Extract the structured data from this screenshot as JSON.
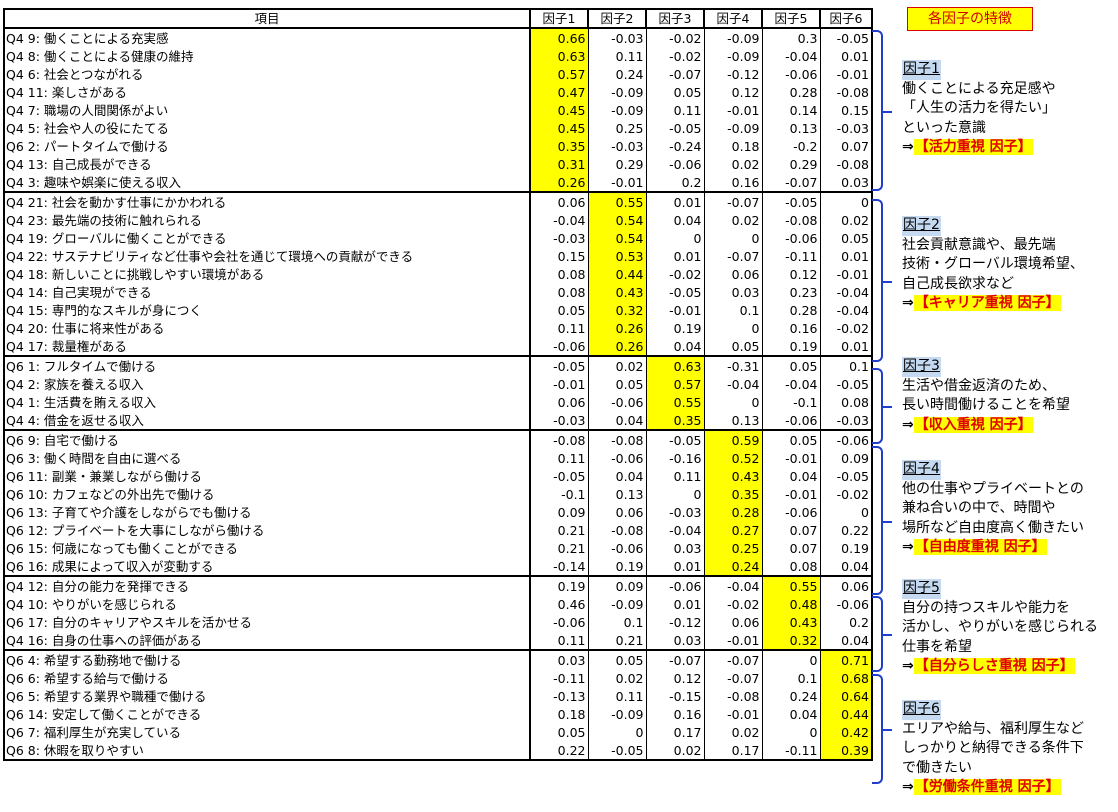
{
  "header": {
    "item": "項目",
    "factors": [
      "因子1",
      "因子2",
      "因子3",
      "因子4",
      "因子5",
      "因子6"
    ]
  },
  "groups": [
    {
      "rows": [
        {
          "item": "Q4 9: 働くことによる充実感",
          "values": [
            "0.66",
            "-0.03",
            "-0.02",
            "-0.09",
            "0.3",
            "-0.05"
          ],
          "hl": 0
        },
        {
          "item": "Q4 8: 働くことによる健康の維持",
          "values": [
            "0.63",
            "0.11",
            "-0.02",
            "-0.09",
            "-0.04",
            "0.01"
          ],
          "hl": 0
        },
        {
          "item": "Q4 6: 社会とつながれる",
          "values": [
            "0.57",
            "0.24",
            "-0.07",
            "-0.12",
            "-0.06",
            "-0.01"
          ],
          "hl": 0
        },
        {
          "item": "Q4 11: 楽しさがある",
          "values": [
            "0.47",
            "-0.09",
            "0.05",
            "0.12",
            "0.28",
            "-0.08"
          ],
          "hl": 0
        },
        {
          "item": "Q4 7: 職場の人間関係がよい",
          "values": [
            "0.45",
            "-0.09",
            "0.11",
            "-0.01",
            "0.14",
            "0.15"
          ],
          "hl": 0
        },
        {
          "item": "Q4 5: 社会や人の役にたてる",
          "values": [
            "0.45",
            "0.25",
            "-0.05",
            "-0.09",
            "0.13",
            "-0.03"
          ],
          "hl": 0
        },
        {
          "item": "Q6 2: パートタイムで働ける",
          "values": [
            "0.35",
            "-0.03",
            "-0.24",
            "0.18",
            "-0.2",
            "0.07"
          ],
          "hl": 0
        },
        {
          "item": "Q4 13: 自己成長ができる",
          "values": [
            "0.31",
            "0.29",
            "-0.06",
            "0.02",
            "0.29",
            "-0.08"
          ],
          "hl": 0
        },
        {
          "item": "Q4 3: 趣味や娯楽に使える収入",
          "values": [
            "0.26",
            "-0.01",
            "0.2",
            "0.16",
            "-0.07",
            "0.03"
          ],
          "hl": 0
        }
      ]
    },
    {
      "rows": [
        {
          "item": "Q4 21: 社会を動かす仕事にかかわれる",
          "values": [
            "0.06",
            "0.55",
            "0.01",
            "-0.07",
            "-0.05",
            "0"
          ],
          "hl": 1
        },
        {
          "item": "Q4 23: 最先端の技術に触れられる",
          "values": [
            "-0.04",
            "0.54",
            "0.04",
            "0.02",
            "-0.08",
            "0.02"
          ],
          "hl": 1
        },
        {
          "item": "Q4 19: グローバルに働くことができる",
          "values": [
            "-0.03",
            "0.54",
            "0",
            "0",
            "-0.06",
            "0.05"
          ],
          "hl": 1
        },
        {
          "item": "Q4 22: サステナビリティなど仕事や会社を通じて環境への貢献ができる",
          "values": [
            "0.15",
            "0.53",
            "0.01",
            "-0.07",
            "-0.11",
            "0.01"
          ],
          "hl": 1
        },
        {
          "item": "Q4 18: 新しいことに挑戦しやすい環境がある",
          "values": [
            "0.08",
            "0.44",
            "-0.02",
            "0.06",
            "0.12",
            "-0.01"
          ],
          "hl": 1
        },
        {
          "item": "Q4 14: 自己実現ができる",
          "values": [
            "0.08",
            "0.43",
            "-0.05",
            "0.03",
            "0.23",
            "-0.04"
          ],
          "hl": 1
        },
        {
          "item": "Q4 15: 専門的なスキルが身につく",
          "values": [
            "0.05",
            "0.32",
            "-0.01",
            "0.1",
            "0.28",
            "-0.04"
          ],
          "hl": 1
        },
        {
          "item": "Q4 20: 仕事に将来性がある",
          "values": [
            "0.11",
            "0.26",
            "0.19",
            "0",
            "0.16",
            "-0.02"
          ],
          "hl": 1
        },
        {
          "item": "Q4 17: 裁量権がある",
          "values": [
            "-0.06",
            "0.26",
            "0.04",
            "0.05",
            "0.19",
            "0.01"
          ],
          "hl": 1
        }
      ]
    },
    {
      "rows": [
        {
          "item": "Q6 1: フルタイムで働ける",
          "values": [
            "-0.05",
            "0.02",
            "0.63",
            "-0.31",
            "0.05",
            "0.1"
          ],
          "hl": 2
        },
        {
          "item": "Q4 2: 家族を養える収入",
          "values": [
            "-0.01",
            "0.05",
            "0.57",
            "-0.04",
            "-0.04",
            "-0.05"
          ],
          "hl": 2
        },
        {
          "item": "Q4 1: 生活費を賄える収入",
          "values": [
            "0.06",
            "-0.06",
            "0.55",
            "0",
            "-0.1",
            "0.08"
          ],
          "hl": 2
        },
        {
          "item": "Q4 4: 借金を返せる収入",
          "values": [
            "-0.03",
            "0.04",
            "0.35",
            "0.13",
            "-0.06",
            "-0.03"
          ],
          "hl": 2
        }
      ]
    },
    {
      "rows": [
        {
          "item": "Q6 9: 自宅で働ける",
          "values": [
            "-0.08",
            "-0.08",
            "-0.05",
            "0.59",
            "0.05",
            "-0.06"
          ],
          "hl": 3
        },
        {
          "item": "Q6 3: 働く時間を自由に選べる",
          "values": [
            "0.11",
            "-0.06",
            "-0.16",
            "0.52",
            "-0.01",
            "0.09"
          ],
          "hl": 3
        },
        {
          "item": "Q6 11: 副業・兼業しながら働ける",
          "values": [
            "-0.05",
            "0.04",
            "0.11",
            "0.43",
            "0.04",
            "-0.05"
          ],
          "hl": 3
        },
        {
          "item": "Q6 10: カフェなどの外出先で働ける",
          "values": [
            "-0.1",
            "0.13",
            "0",
            "0.35",
            "-0.01",
            "-0.02"
          ],
          "hl": 3
        },
        {
          "item": "Q6 13: 子育てや介護をしながらでも働ける",
          "values": [
            "0.09",
            "0.06",
            "-0.03",
            "0.28",
            "-0.06",
            "0"
          ],
          "hl": 3
        },
        {
          "item": "Q6 12: プライベートを大事にしながら働ける",
          "values": [
            "0.21",
            "-0.08",
            "-0.04",
            "0.27",
            "0.07",
            "0.22"
          ],
          "hl": 3
        },
        {
          "item": "Q6 15: 何歳になっても働くことができる",
          "values": [
            "0.21",
            "-0.06",
            "0.03",
            "0.25",
            "0.07",
            "0.19"
          ],
          "hl": 3
        },
        {
          "item": "Q6 16: 成果によって収入が変動する",
          "values": [
            "-0.14",
            "0.19",
            "0.01",
            "0.24",
            "0.08",
            "0.04"
          ],
          "hl": 3
        }
      ]
    },
    {
      "rows": [
        {
          "item": "Q4 12: 自分の能力を発揮できる",
          "values": [
            "0.19",
            "0.09",
            "-0.06",
            "-0.04",
            "0.55",
            "0.06"
          ],
          "hl": 4
        },
        {
          "item": "Q4 10: やりがいを感じられる",
          "values": [
            "0.46",
            "-0.09",
            "0.01",
            "-0.02",
            "0.48",
            "-0.06"
          ],
          "hl": 4
        },
        {
          "item": "Q6 17: 自分のキャリアやスキルを活かせる",
          "values": [
            "-0.06",
            "0.1",
            "-0.12",
            "0.06",
            "0.43",
            "0.2"
          ],
          "hl": 4
        },
        {
          "item": "Q4 16: 自身の仕事への評価がある",
          "values": [
            "0.11",
            "0.21",
            "0.03",
            "-0.01",
            "0.32",
            "0.04"
          ],
          "hl": 4
        }
      ]
    },
    {
      "rows": [
        {
          "item": "Q6 4: 希望する勤務地で働ける",
          "values": [
            "0.03",
            "0.05",
            "-0.07",
            "-0.07",
            "0",
            "0.71"
          ],
          "hl": 5
        },
        {
          "item": "Q6 6: 希望する給与で働ける",
          "values": [
            "-0.11",
            "0.02",
            "0.12",
            "-0.07",
            "0.1",
            "0.68"
          ],
          "hl": 5
        },
        {
          "item": "Q6 5: 希望する業界や職種で働ける",
          "values": [
            "-0.13",
            "0.11",
            "-0.15",
            "-0.08",
            "0.24",
            "0.64"
          ],
          "hl": 5
        },
        {
          "item": "Q6 14: 安定して働くことができる",
          "values": [
            "0.18",
            "-0.09",
            "0.16",
            "-0.01",
            "0.04",
            "0.44"
          ],
          "hl": 5
        },
        {
          "item": "Q6 7: 福利厚生が充実している",
          "values": [
            "0.05",
            "0",
            "0.17",
            "0.02",
            "0",
            "0.42"
          ],
          "hl": 5
        },
        {
          "item": "Q6 8: 休暇を取りやすい",
          "values": [
            "0.22",
            "-0.05",
            "0.02",
            "0.17",
            "-0.11",
            "0.39"
          ],
          "hl": 5
        }
      ]
    }
  ],
  "side": {
    "title": "各因子の特徴",
    "factors": [
      {
        "name": "因子1",
        "lines": [
          "働くことによる充足感や",
          "「人生の活力を得たい」",
          "といった意識"
        ],
        "arrow": "⇒",
        "tag": "【活力重視 因子】"
      },
      {
        "name": "因子2",
        "lines": [
          "社会貢献意識や、最先端",
          "技術・グローバル環境希望、",
          "自己成長欲求など"
        ],
        "arrow": "⇒",
        "tag": "【キャリア重視 因子】"
      },
      {
        "name": "因子3",
        "lines": [
          "生活や借金返済のため、",
          "長い時間働けることを希望"
        ],
        "arrow": "⇒",
        "tag": "【収入重視 因子】"
      },
      {
        "name": "因子4",
        "lines": [
          "他の仕事やプライベートとの",
          "兼ね合いの中で、時間や",
          "場所など自由度高く働きたい"
        ],
        "arrow": "⇒",
        "tag": "【自由度重視 因子】"
      },
      {
        "name": "因子5",
        "lines": [
          "自分の持つスキルや能力を",
          "活かし、やりがいを感じられる",
          "仕事を希望"
        ],
        "arrow": "⇒",
        "tag": "【自分らしさ重視 因子】"
      },
      {
        "name": "因子6",
        "lines": [
          "エリアや給与、福利厚生など",
          "しっかりと納得できる条件下",
          "で働きたい"
        ],
        "arrow": "⇒",
        "tag": "【労働条件重視 因子】"
      }
    ]
  }
}
